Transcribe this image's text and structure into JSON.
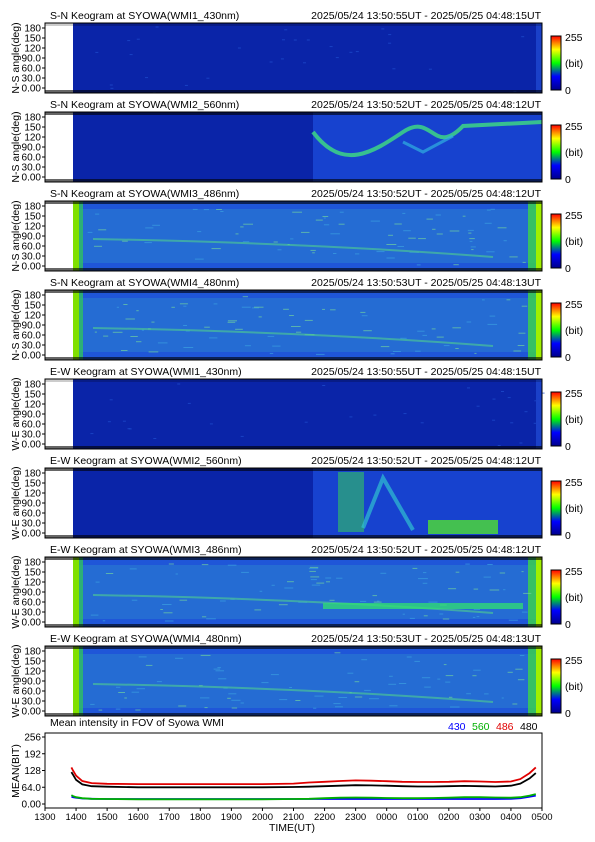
{
  "panels": [
    {
      "title": "S-N Keogram at SYOWA(WMI1_430nm)",
      "time_range": "2025/05/24 13:50:55UT - 2025/05/25 04:48:15UT",
      "ylabel": "N-S angle(deg)",
      "variant": "dim"
    },
    {
      "title": "S-N Keogram at SYOWA(WMI2_560nm)",
      "time_range": "2025/05/24 13:50:52UT - 2025/05/25 04:48:12UT",
      "ylabel": "N-S angle(deg)",
      "variant": "aurora_sn"
    },
    {
      "title": "S-N Keogram at SYOWA(WMI3_486nm)",
      "time_range": "2025/05/24 13:50:52UT - 2025/05/25 04:48:12UT",
      "ylabel": "N-S angle(deg)",
      "variant": "bright"
    },
    {
      "title": "S-N Keogram at SYOWA(WMI4_480nm)",
      "time_range": "2025/05/24 13:50:53UT - 2025/05/25 04:48:13UT",
      "ylabel": "N-S angle(deg)",
      "variant": "bright"
    },
    {
      "title": "E-W Keogram at SYOWA(WMI1_430nm)",
      "time_range": "2025/05/24 13:50:55UT - 2025/05/25 04:48:15UT",
      "ylabel": "W-E angle(deg)",
      "variant": "dim"
    },
    {
      "title": "E-W Keogram at SYOWA(WMI2_560nm)",
      "time_range": "2025/05/24 13:50:52UT - 2025/05/25 04:48:12UT",
      "ylabel": "W-E angle(deg)",
      "variant": "aurora_ew"
    },
    {
      "title": "E-W Keogram at SYOWA(WMI3_486nm)",
      "time_range": "2025/05/24 13:50:52UT - 2025/05/25 04:48:12UT",
      "ylabel": "W-E angle(deg)",
      "variant": "bright"
    },
    {
      "title": "E-W Keogram at SYOWA(WMI4_480nm)",
      "time_range": "2025/05/24 13:50:53UT - 2025/05/25 04:48:13UT",
      "ylabel": "W-E angle(deg)",
      "variant": "bright"
    }
  ],
  "angle_ticks": [
    "180",
    "150",
    "120",
    "90.0",
    "60.0",
    "30.0",
    "0.00"
  ],
  "colorbar": {
    "min_label": "0",
    "max_label": "255",
    "unit": "(bit)"
  },
  "colormap": [
    "#00008b",
    "#0000ff",
    "#00ff00",
    "#ffff00",
    "#ff0000"
  ],
  "chart_data": {
    "type": "line",
    "title": "Mean intensity in FOV of Syowa WMI",
    "xlabel": "TIME(UT)",
    "ylabel": "MEAN(BIT)",
    "xticks": [
      "1300",
      "1400",
      "1500",
      "1600",
      "1700",
      "1800",
      "1900",
      "2000",
      "2100",
      "2200",
      "2300",
      "0000",
      "0100",
      "0200",
      "0300",
      "0400",
      "0500"
    ],
    "yticks": [
      "256",
      "192",
      "128",
      "64.0",
      "0.00"
    ],
    "ylim": [
      0,
      256
    ],
    "x_hours": [
      13.85,
      13.9,
      14.0,
      14.2,
      14.5,
      15,
      16,
      17,
      18,
      19,
      20,
      21,
      21.5,
      22,
      22.5,
      23,
      23.5,
      24,
      24.5,
      25,
      25.5,
      26,
      26.5,
      27,
      27.5,
      28,
      28.3,
      28.6,
      28.8
    ],
    "series": [
      {
        "name": "430",
        "color": "#0000ff",
        "values": [
          28,
          26,
          24,
          21,
          20,
          19,
          19,
          19,
          19,
          19,
          19,
          19,
          19,
          19,
          19,
          19,
          19,
          19,
          19,
          19,
          19,
          19,
          19,
          19,
          19,
          20,
          22,
          28,
          32
        ]
      },
      {
        "name": "560",
        "color": "#00b000",
        "values": [
          34,
          30,
          26,
          22,
          20,
          19,
          18,
          18,
          18,
          18,
          18,
          19,
          20,
          22,
          24,
          25,
          24,
          23,
          22,
          22,
          23,
          24,
          26,
          26,
          25,
          24,
          26,
          32,
          38
        ]
      },
      {
        "name": "486",
        "color": "#e00000",
        "values": [
          140,
          128,
          108,
          88,
          80,
          77,
          76,
          76,
          76,
          76,
          76,
          78,
          82,
          85,
          88,
          90,
          89,
          87,
          85,
          84,
          84,
          85,
          87,
          86,
          84,
          86,
          95,
          118,
          140
        ]
      },
      {
        "name": "480",
        "color": "#000000",
        "values": [
          122,
          112,
          92,
          75,
          68,
          66,
          64,
          64,
          64,
          64,
          64,
          65,
          66,
          68,
          70,
          72,
          71,
          70,
          68,
          67,
          67,
          68,
          69,
          68,
          67,
          70,
          78,
          98,
          118
        ]
      }
    ]
  }
}
